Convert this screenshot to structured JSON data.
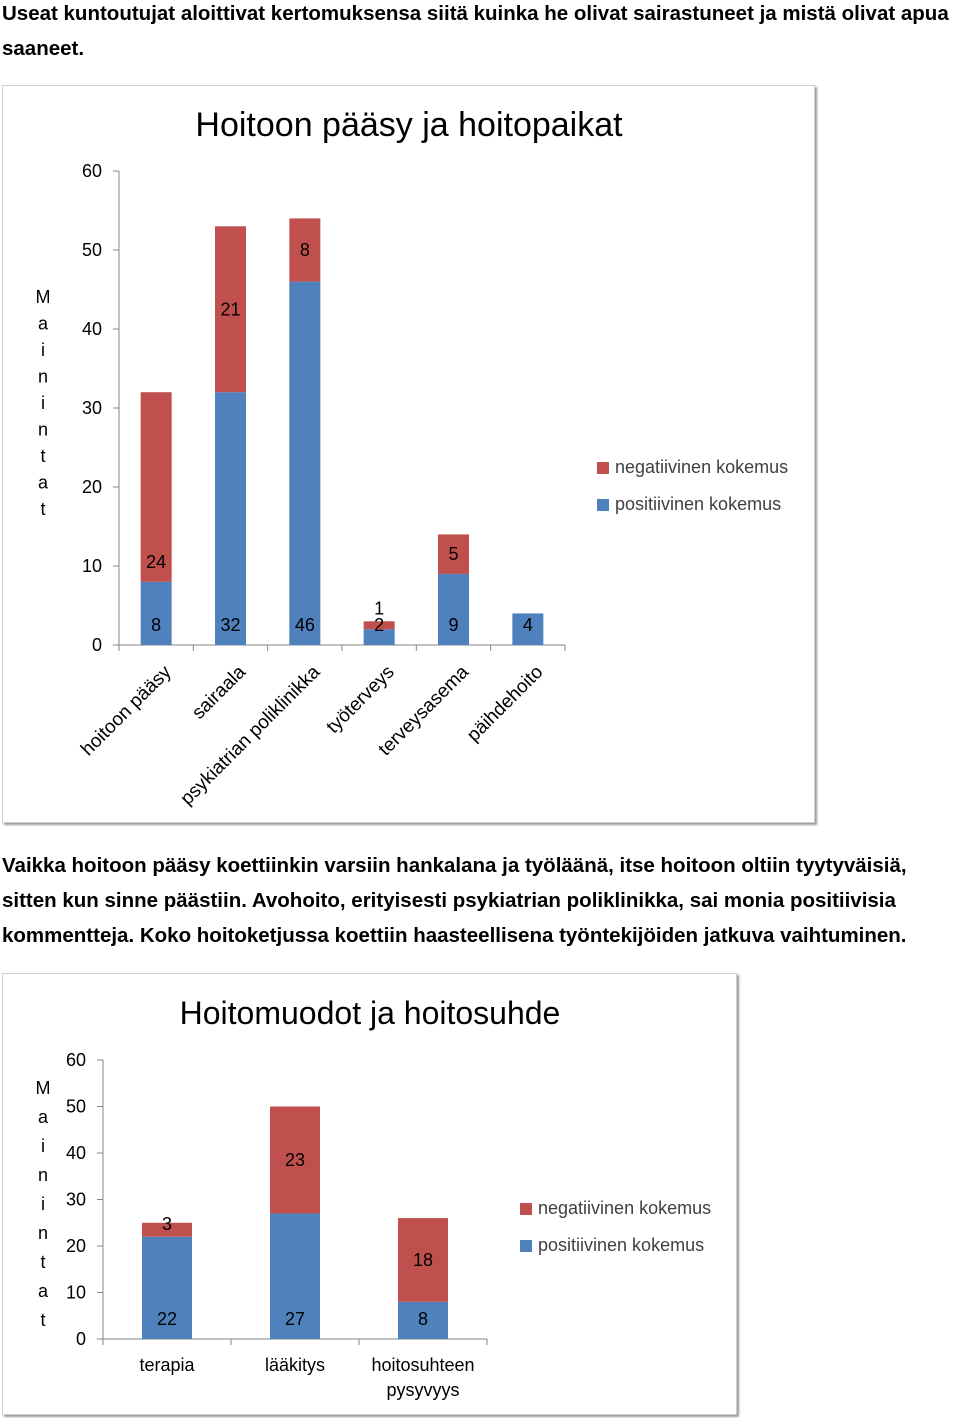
{
  "intro_text": "Useat kuntoutujat aloittivat kertomuksensa siitä kuinka he olivat sairastuneet ja mistä olivat apua saaneet.",
  "middle_text": "Vaikka hoitoon pääsy koettiinkin varsiin hankalana ja työläänä, itse hoitoon oltiin tyytyväisiä, sitten kun sinne päästiin. Avohoito, erityisesti psykiatrian poliklinikka, sai monia positiivisia kommentteja. Koko hoitoketjussa koettiin haasteellisena työntekijöiden jatkuva vaihtuminen.",
  "colors": {
    "positive": "#4f81bd",
    "negative": "#c0504d",
    "axis": "#868686"
  },
  "chart_data": [
    {
      "type": "bar",
      "stacked": true,
      "title": "Hoitoon pääsy ja hoitopaikat",
      "ylabel": "Mainintat",
      "xlabel": "",
      "ylim": [
        0,
        60
      ],
      "yticks": [
        0,
        10,
        20,
        30,
        40,
        50,
        60
      ],
      "grid": false,
      "legend": "right",
      "categories": [
        "hoitoon pääsy",
        "sairaala",
        "psykiatrian poliklinikka",
        "työterveys",
        "terveysasema",
        "päihdehoito"
      ],
      "series": [
        {
          "name": "positiivinen kokemus",
          "values": [
            8,
            32,
            46,
            2,
            9,
            4
          ]
        },
        {
          "name": "negatiivinen kokemus",
          "values": [
            24,
            21,
            8,
            1,
            5,
            0
          ]
        }
      ]
    },
    {
      "type": "bar",
      "stacked": true,
      "title": "Hoitomuodot ja hoitosuhde",
      "ylabel": "Mainintat",
      "xlabel": "",
      "ylim": [
        0,
        60
      ],
      "yticks": [
        0,
        10,
        20,
        30,
        40,
        50,
        60
      ],
      "grid": false,
      "legend": "right",
      "categories": [
        "terapia",
        "lääkitys",
        "hoitosuhteen pysyvyys"
      ],
      "series": [
        {
          "name": "positiivinen kokemus",
          "values": [
            22,
            27,
            8
          ]
        },
        {
          "name": "negatiivinen kokemus",
          "values": [
            3,
            23,
            18
          ]
        }
      ]
    }
  ]
}
